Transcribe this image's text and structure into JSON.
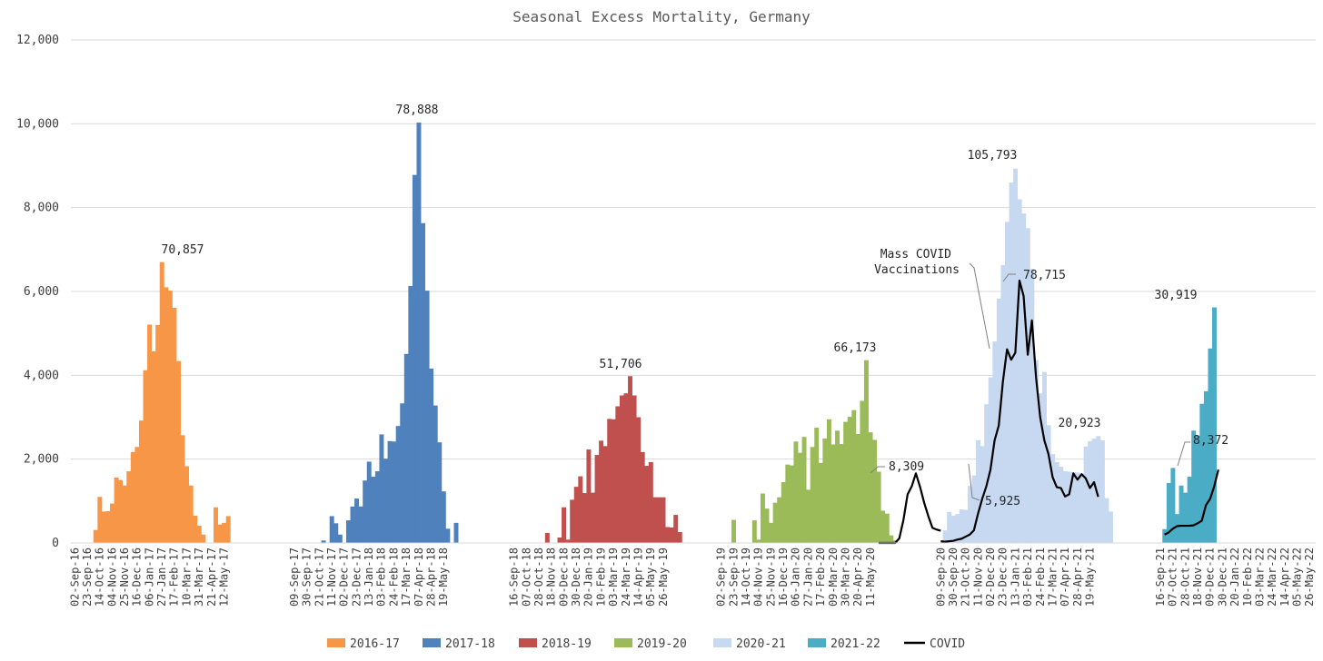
{
  "chart_data": {
    "type": "bar",
    "title": "Seasonal Excess Mortality, Germany",
    "xlabel": "",
    "ylabel": "",
    "ylim": [
      0,
      12000
    ],
    "yticks": [
      "0",
      "2,000",
      "4,000",
      "6,000",
      "8,000",
      "10,000",
      "12,000"
    ],
    "grid": true,
    "legend_position": "bottom",
    "x_tick_labels": [
      "02-Sep-16",
      "23-Sep-16",
      "14-Oct-16",
      "04-Nov-16",
      "25-Nov-16",
      "16-Dec-16",
      "06-Jan-17",
      "27-Jan-17",
      "17-Feb-17",
      "10-Mar-17",
      "31-Mar-17",
      "21-Apr-17",
      "12-May-17",
      "09-Sep-17",
      "30-Sep-17",
      "21-Oct-17",
      "11-Nov-17",
      "02-Dec-17",
      "23-Dec-17",
      "13-Jan-18",
      "03-Feb-18",
      "24-Feb-18",
      "17-Mar-18",
      "07-Apr-18",
      "28-Apr-18",
      "19-May-18",
      "16-Sep-18",
      "07-Oct-18",
      "28-Oct-18",
      "18-Nov-18",
      "09-Dec-18",
      "30-Dec-18",
      "20-Jan-19",
      "10-Feb-19",
      "03-Mar-19",
      "24-Mar-19",
      "14-Apr-19",
      "05-May-19",
      "26-May-19",
      "02-Sep-19",
      "23-Sep-19",
      "14-Oct-19",
      "04-Nov-19",
      "25-Nov-19",
      "16-Dec-19",
      "06-Jan-20",
      "27-Jan-20",
      "17-Feb-20",
      "09-Mar-20",
      "30-Mar-20",
      "20-Apr-20",
      "11-May-20",
      "09-Sep-20",
      "30-Sep-20",
      "21-Oct-20",
      "11-Nov-20",
      "02-Dec-20",
      "23-Dec-20",
      "13-Jan-21",
      "03-Feb-21",
      "24-Feb-21",
      "17-Mar-21",
      "07-Apr-21",
      "28-Apr-21",
      "19-May-21",
      "16-Sep-21",
      "07-Oct-21",
      "28-Oct-21",
      "18-Nov-21",
      "09-Dec-21",
      "30-Dec-21",
      "20-Jan-22",
      "10-Feb-22",
      "03-Mar-22",
      "24-Mar-22",
      "14-Apr-22",
      "05-May-22",
      "26-May-22"
    ],
    "series": [
      {
        "name": "2016-17",
        "color": "#f79646",
        "values": [
          10,
          10,
          10,
          10,
          10,
          310,
          1100,
          750,
          760,
          940,
          1560,
          1500,
          1370,
          1710,
          2170,
          2290,
          2920,
          4120,
          5210,
          4570,
          5200,
          6700,
          6100,
          6020,
          5610,
          4340,
          2570,
          1830,
          1370,
          650,
          410,
          200,
          0,
          0,
          850,
          440,
          480,
          640
        ]
      },
      {
        "name": "2017-18",
        "color": "#4f81bd",
        "values": [
          0,
          0,
          0,
          0,
          10,
          10,
          10,
          60,
          0,
          640,
          470,
          200,
          10,
          540,
          870,
          1060,
          870,
          1490,
          1940,
          1580,
          1710,
          2590,
          2010,
          2430,
          2420,
          2790,
          3330,
          4510,
          6130,
          8780,
          10030,
          7630,
          6020,
          4160,
          3280,
          2400,
          1230,
          340,
          0,
          480,
          10
        ]
      },
      {
        "name": "2018-19",
        "color": "#c0504d",
        "values": [
          0,
          0,
          10,
          10,
          10,
          10,
          10,
          240,
          10,
          10,
          130,
          850,
          80,
          1030,
          1340,
          1590,
          1190,
          2230,
          1200,
          2100,
          2440,
          2310,
          2960,
          2950,
          3260,
          3520,
          3570,
          3980,
          3520,
          3000,
          2170,
          1840,
          1930,
          1090,
          1090,
          1090,
          380,
          370,
          670,
          260
        ]
      },
      {
        "name": "2019-20",
        "color": "#9bbb59",
        "values": [
          0,
          0,
          550,
          0,
          0,
          0,
          0,
          540,
          80,
          1180,
          820,
          480,
          960,
          1090,
          1450,
          1870,
          1850,
          2420,
          2150,
          2530,
          1270,
          2290,
          2750,
          1910,
          2490,
          2950,
          2350,
          2680,
          2360,
          2890,
          3010,
          3170,
          2600,
          3390,
          4360,
          2640,
          2460,
          1700,
          770,
          700,
          180,
          60
        ]
      },
      {
        "name": "2020-21",
        "color": "#c6d9f1",
        "values": [
          0,
          300,
          740,
          650,
          690,
          800,
          790,
          1360,
          1610,
          2450,
          2310,
          3310,
          3950,
          4810,
          5830,
          6630,
          7660,
          8600,
          8930,
          8200,
          7860,
          7510,
          6540,
          4360,
          3570,
          4080,
          2810,
          2120,
          1930,
          1820,
          1710,
          1700,
          1690,
          1680,
          1660,
          2300,
          2430,
          2490,
          2550,
          2450,
          1070,
          750
        ]
      },
      {
        "name": "2021-22",
        "color": "#4bacc6",
        "values": [
          330,
          1430,
          1790,
          690,
          1370,
          1200,
          1580,
          2680,
          2560,
          3320,
          3620,
          4640,
          5620
        ]
      }
    ],
    "covid_series": {
      "name": "COVID",
      "color": "#000000",
      "values": [
        [
          0,
          0,
          0,
          0,
          0,
          110,
          550,
          1160,
          1350,
          1660,
          1340,
          960,
          640,
          360,
          320,
          290
        ],
        [
          40,
          30,
          40,
          50,
          80,
          100,
          150,
          200,
          300,
          700,
          1050,
          1350,
          1750,
          2450,
          2800,
          3850,
          4620,
          4370,
          4540,
          6260,
          5890,
          4490,
          5310,
          3950,
          3000,
          2450,
          2120,
          1570,
          1330,
          1310,
          1110,
          1160,
          1660,
          1510,
          1640,
          1540,
          1310,
          1450,
          1100
        ],
        [
          200,
          250,
          340,
          400,
          410,
          410,
          410,
          420,
          470,
          530,
          900,
          1050,
          1350,
          1750
        ]
      ]
    },
    "annotations": [
      "70,857",
      "78,888",
      "51,706",
      "66,173",
      "8,309",
      "105,793",
      "Mass COVID",
      "Vaccinations",
      "78,715",
      "5,925",
      "20,923",
      "30,919",
      "8,372"
    ]
  }
}
